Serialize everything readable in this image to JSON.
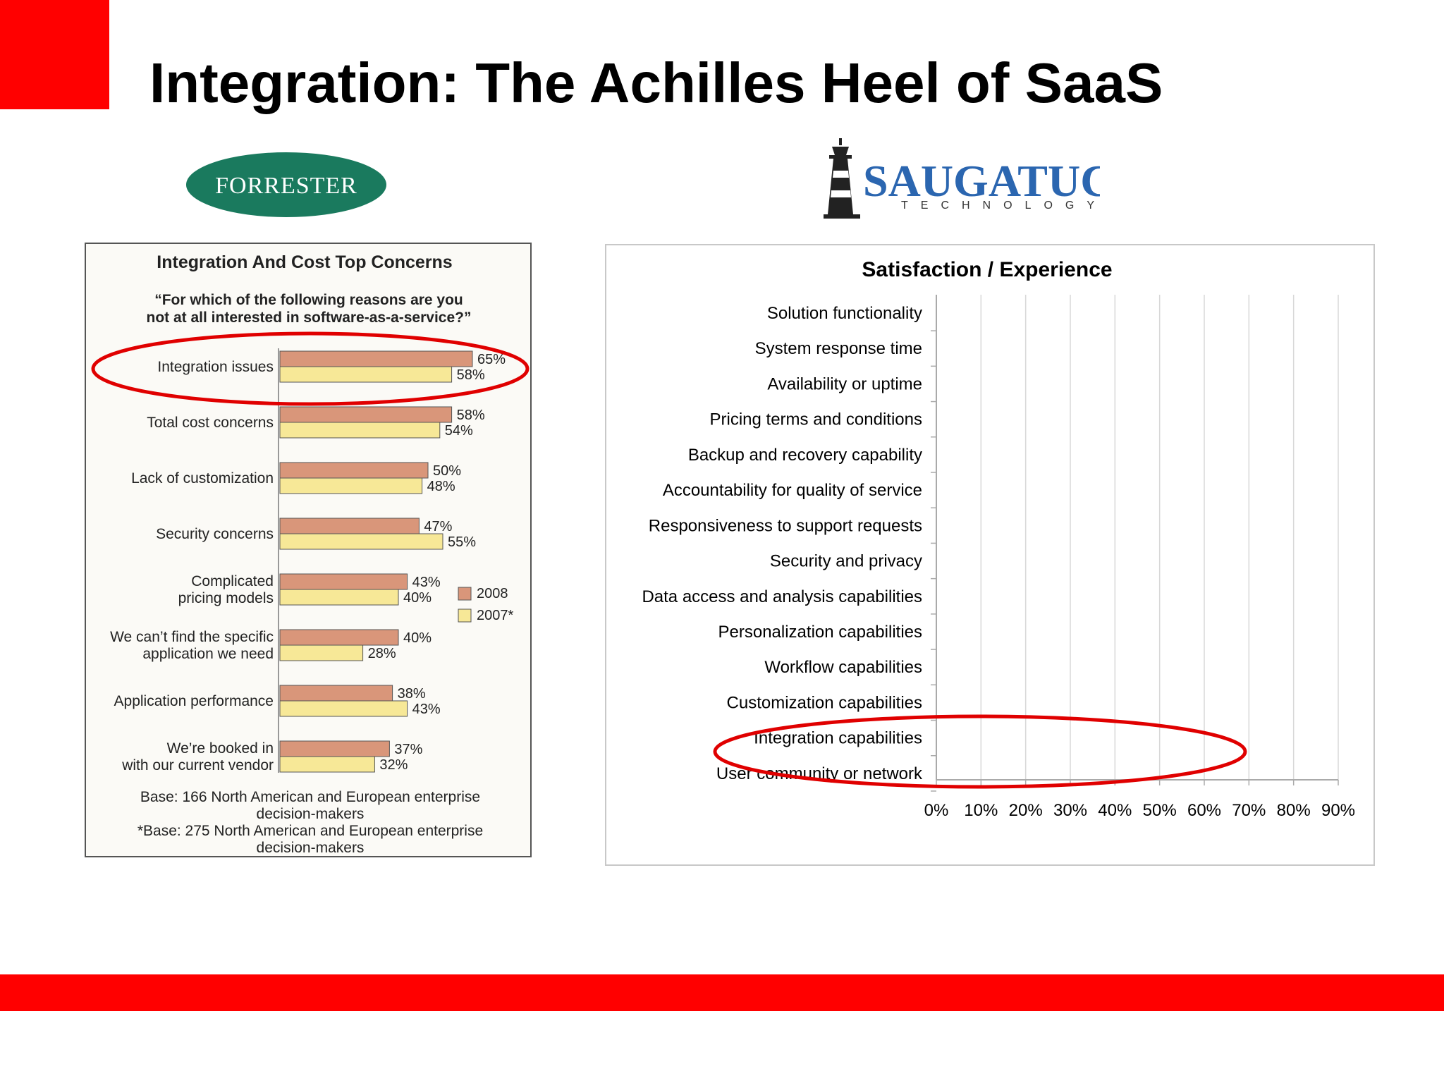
{
  "slide": {
    "title": "Integration: The Achilles Heel of SaaS",
    "accent_color": "#ff0000"
  },
  "logos": {
    "forrester": {
      "text": "FORRESTER",
      "color": "#1a7a5e"
    },
    "saugatuck": {
      "name": "SAUGATUCK",
      "sub": "TECHNOLOGY",
      "icon": "lighthouse-icon",
      "color": "#2b66b0"
    }
  },
  "chart_data": [
    {
      "type": "bar",
      "title": "Integration And Cost Top Concerns",
      "subtitle_line1": "“For which of the following reasons are you",
      "subtitle_line2": "not at all interested in software-as-a-service?”",
      "categories": [
        [
          "Integration issues"
        ],
        [
          "Total cost concerns"
        ],
        [
          "Lack of customization"
        ],
        [
          "Security concerns"
        ],
        [
          "Complicated",
          "pricing models"
        ],
        [
          "We can’t find the specific",
          "application we need"
        ],
        [
          "Application performance"
        ],
        [
          "We’re booked in",
          "with our current vendor"
        ]
      ],
      "series": [
        {
          "name": "2008",
          "color": "#d9967a",
          "values": [
            65,
            58,
            50,
            47,
            43,
            40,
            38,
            37
          ]
        },
        {
          "name": "2007*",
          "color": "#f7e897",
          "values": [
            58,
            54,
            48,
            55,
            40,
            28,
            43,
            32
          ]
        }
      ],
      "highlight_index": 0,
      "notes": [
        "Base: 166 North American and European enterprise",
        "decision-makers",
        "*Base: 275 North American and European enterprise",
        "decision-makers"
      ]
    },
    {
      "type": "bar",
      "title": "Satisfaction / Experience",
      "categories": [
        "Solution functionality",
        "System response time",
        "Availability or uptime",
        "Pricing terms and conditions",
        "Backup and recovery capability",
        "Accountability for quality of service",
        "Responsiveness to support requests",
        "Security and privacy",
        "Data access and analysis capabilities",
        "Personalization capabilities",
        "Workflow capabilities",
        "Customization capabilities",
        "Integration capabilities",
        "User community or network"
      ],
      "xticks": [
        "0%",
        "10%",
        "20%",
        "30%",
        "40%",
        "50%",
        "60%",
        "70%",
        "80%",
        "90%"
      ],
      "xlim": [
        0,
        90
      ],
      "grid": true,
      "highlight_index": 12
    }
  ]
}
